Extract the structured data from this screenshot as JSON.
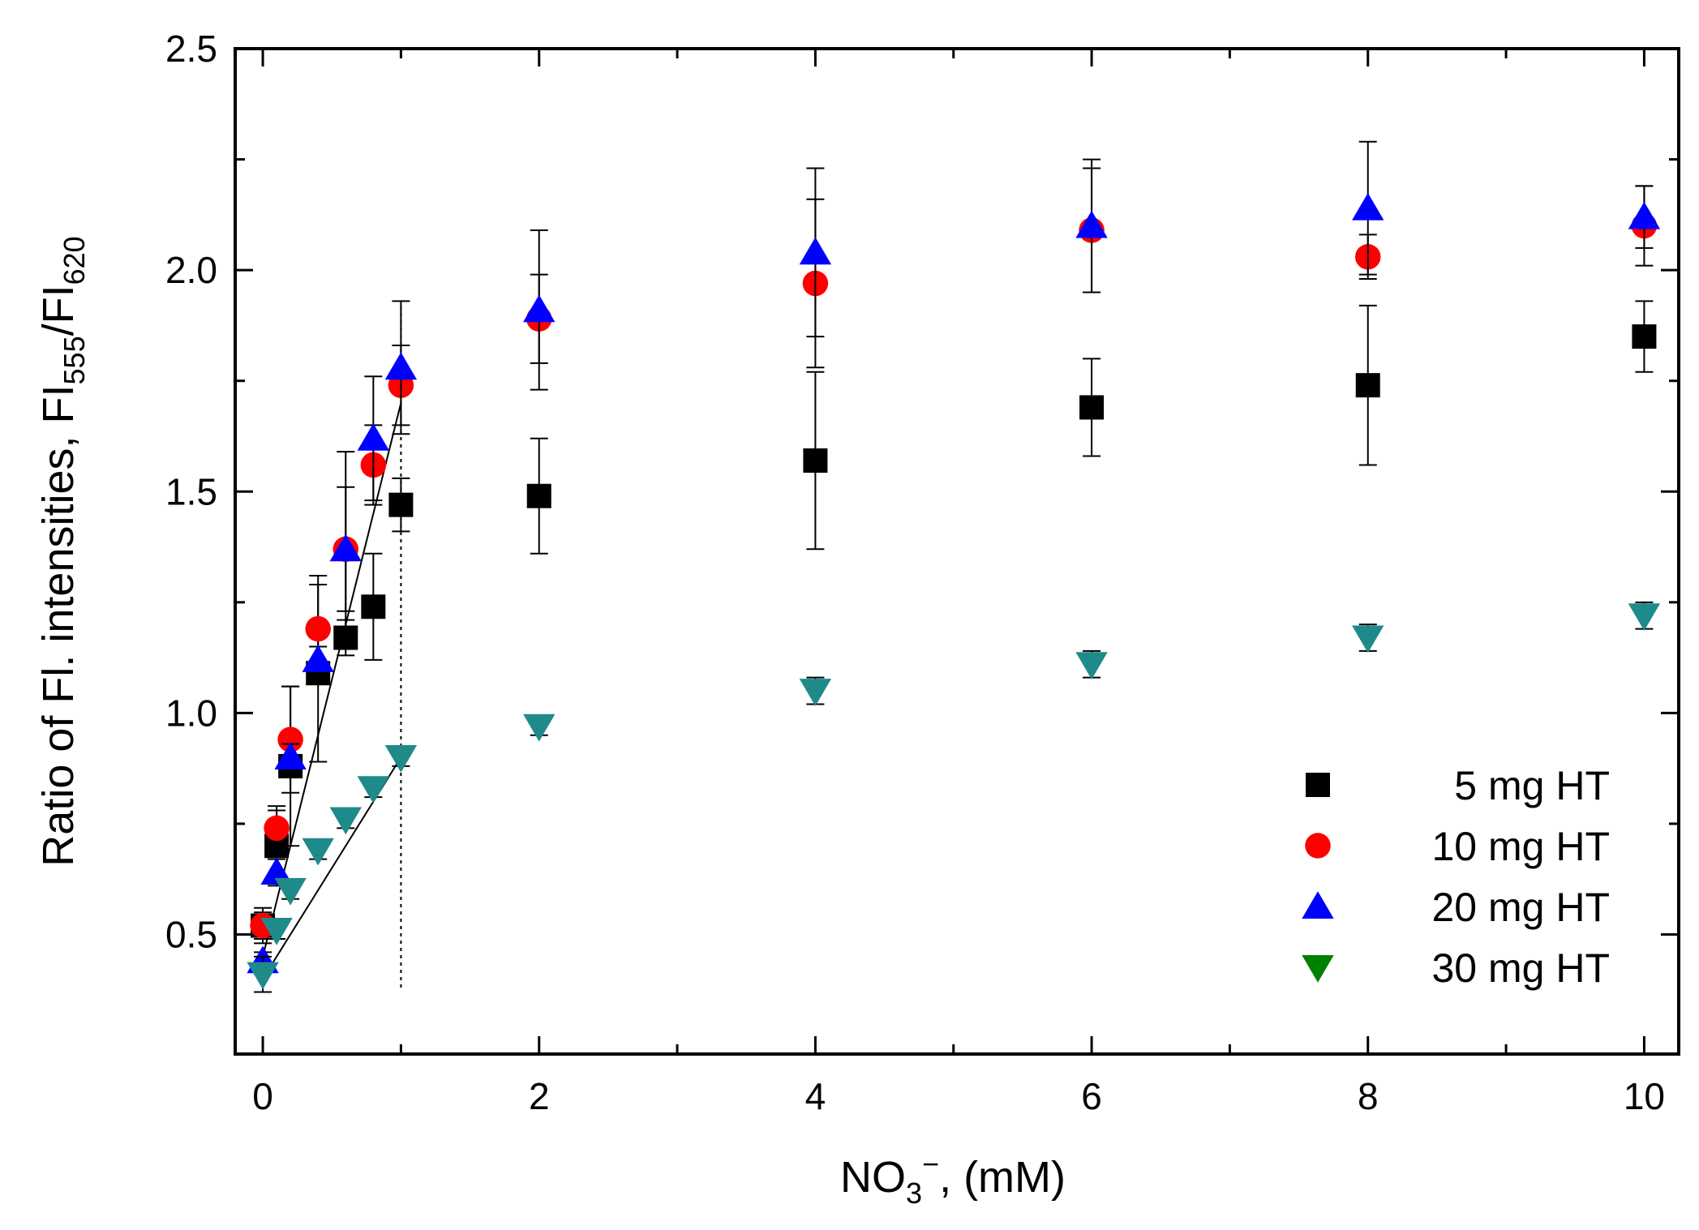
{
  "chart_data": {
    "type": "scatter",
    "title": "",
    "xlabel": {
      "main": "NO",
      "sub": "3",
      "sup": "−",
      "tail": ", (mM)"
    },
    "ylabel": {
      "p1": "Ratio of Fl. intensities, FI",
      "sub1": "555",
      "p2": "/FI",
      "sub2": "620"
    },
    "xlim": [
      -0.2,
      10.25
    ],
    "ylim": [
      0.23,
      2.5
    ],
    "xticks": [
      0,
      2,
      4,
      6,
      8,
      10
    ],
    "xtick_labels": [
      "0",
      "2",
      "4",
      "6",
      "8",
      "10"
    ],
    "xminor": [
      1,
      3,
      5,
      7,
      9
    ],
    "yticks": [
      0.5,
      1.0,
      1.5,
      2.0,
      2.5
    ],
    "ytick_labels": [
      "0.5",
      "1.0",
      "1.5",
      "2.0",
      "2.5"
    ],
    "yminor": [
      0.75,
      1.25,
      1.75,
      2.25
    ],
    "grid": false,
    "legend_position": "bottom-right",
    "vline_x": 1,
    "series": [
      {
        "name": "5 mg HT",
        "marker": "square",
        "color": "#000000",
        "x": [
          0,
          0.1,
          0.2,
          0.4,
          0.6,
          0.8,
          1,
          2,
          4,
          6,
          8,
          10
        ],
        "y": [
          0.52,
          0.7,
          0.88,
          1.09,
          1.17,
          1.24,
          1.47,
          1.49,
          1.57,
          1.69,
          1.74,
          1.85
        ],
        "err": [
          0.04,
          0.08,
          0.18,
          0.2,
          0.04,
          0.12,
          0.06,
          0.13,
          0.2,
          0.11,
          0.18,
          0.08
        ],
        "fit": {
          "x": [
            0,
            1
          ],
          "y": [
            0.45,
            1.7
          ]
        }
      },
      {
        "name": "10 mg HT",
        "marker": "circle",
        "color": "#ff0000",
        "x": [
          0,
          0.1,
          0.2,
          0.4,
          0.6,
          0.8,
          1,
          2,
          4,
          6,
          8,
          10
        ],
        "y": [
          0.52,
          0.74,
          0.94,
          1.19,
          1.37,
          1.56,
          1.74,
          1.89,
          1.97,
          2.09,
          2.03,
          2.1
        ],
        "err": [
          0.03,
          0.05,
          0.12,
          0.12,
          0.14,
          0.09,
          0.09,
          0.1,
          0.19,
          0.14,
          0.05,
          0.09
        ]
      },
      {
        "name": "20 mg HT",
        "marker": "triangle-up",
        "color": "#0000ff",
        "x": [
          0,
          0.1,
          0.2,
          0.4,
          0.6,
          0.8,
          1,
          2,
          4,
          6,
          8,
          10
        ],
        "y": [
          0.44,
          0.64,
          0.9,
          1.12,
          1.37,
          1.62,
          1.78,
          1.91,
          2.04,
          2.1,
          2.14,
          2.12
        ],
        "err": [
          0.02,
          0.03,
          0.03,
          0.03,
          0.22,
          0.14,
          0.15,
          0.18,
          0.19,
          0.15,
          0.15,
          0.07
        ]
      },
      {
        "name": "30 mg HT",
        "marker": "triangle-down",
        "color": "#008000",
        "plot_color": "#1f8a8a",
        "x": [
          0,
          0.1,
          0.2,
          0.4,
          0.6,
          0.8,
          1,
          2,
          4,
          6,
          8,
          10
        ],
        "y": [
          0.41,
          0.51,
          0.6,
          0.69,
          0.76,
          0.83,
          0.9,
          0.97,
          1.05,
          1.11,
          1.17,
          1.22
        ],
        "err": [
          0.04,
          0.02,
          0.02,
          0.02,
          0.02,
          0.02,
          0.02,
          0.02,
          0.03,
          0.03,
          0.03,
          0.03
        ],
        "fit": {
          "x": [
            0,
            1
          ],
          "y": [
            0.4,
            0.9
          ]
        }
      }
    ]
  }
}
